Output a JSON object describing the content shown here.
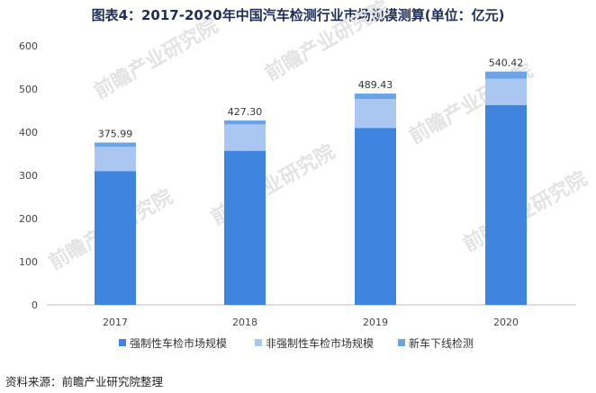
{
  "title": "图表4：2017-2020年中国汽车检测行业市场规模测算(单位：亿元)",
  "source": "资料来源：前瞻产业研究院整理",
  "watermark_text": "前瞻产业研究院",
  "chart_data": {
    "type": "bar",
    "stacked": true,
    "categories": [
      "2017",
      "2018",
      "2019",
      "2020"
    ],
    "series": [
      {
        "name": "强制性车检市场规模",
        "color": "#3f84df",
        "values": [
          310,
          357,
          410,
          463
        ]
      },
      {
        "name": "非强制性车检市场规模",
        "color": "#a9c7f1",
        "values": [
          56,
          61,
          67,
          61
        ]
      },
      {
        "name": "新车下线检测",
        "color": "#6aa3e6",
        "values": [
          9.99,
          9.3,
          12.43,
          16.42
        ]
      }
    ],
    "totals": [
      "375.99",
      "427.30",
      "489.43",
      "540.42"
    ],
    "ylim": [
      0,
      600
    ],
    "yticks": [
      0,
      100,
      200,
      300,
      400,
      500,
      600
    ],
    "grid": false,
    "legend": "bottom"
  }
}
